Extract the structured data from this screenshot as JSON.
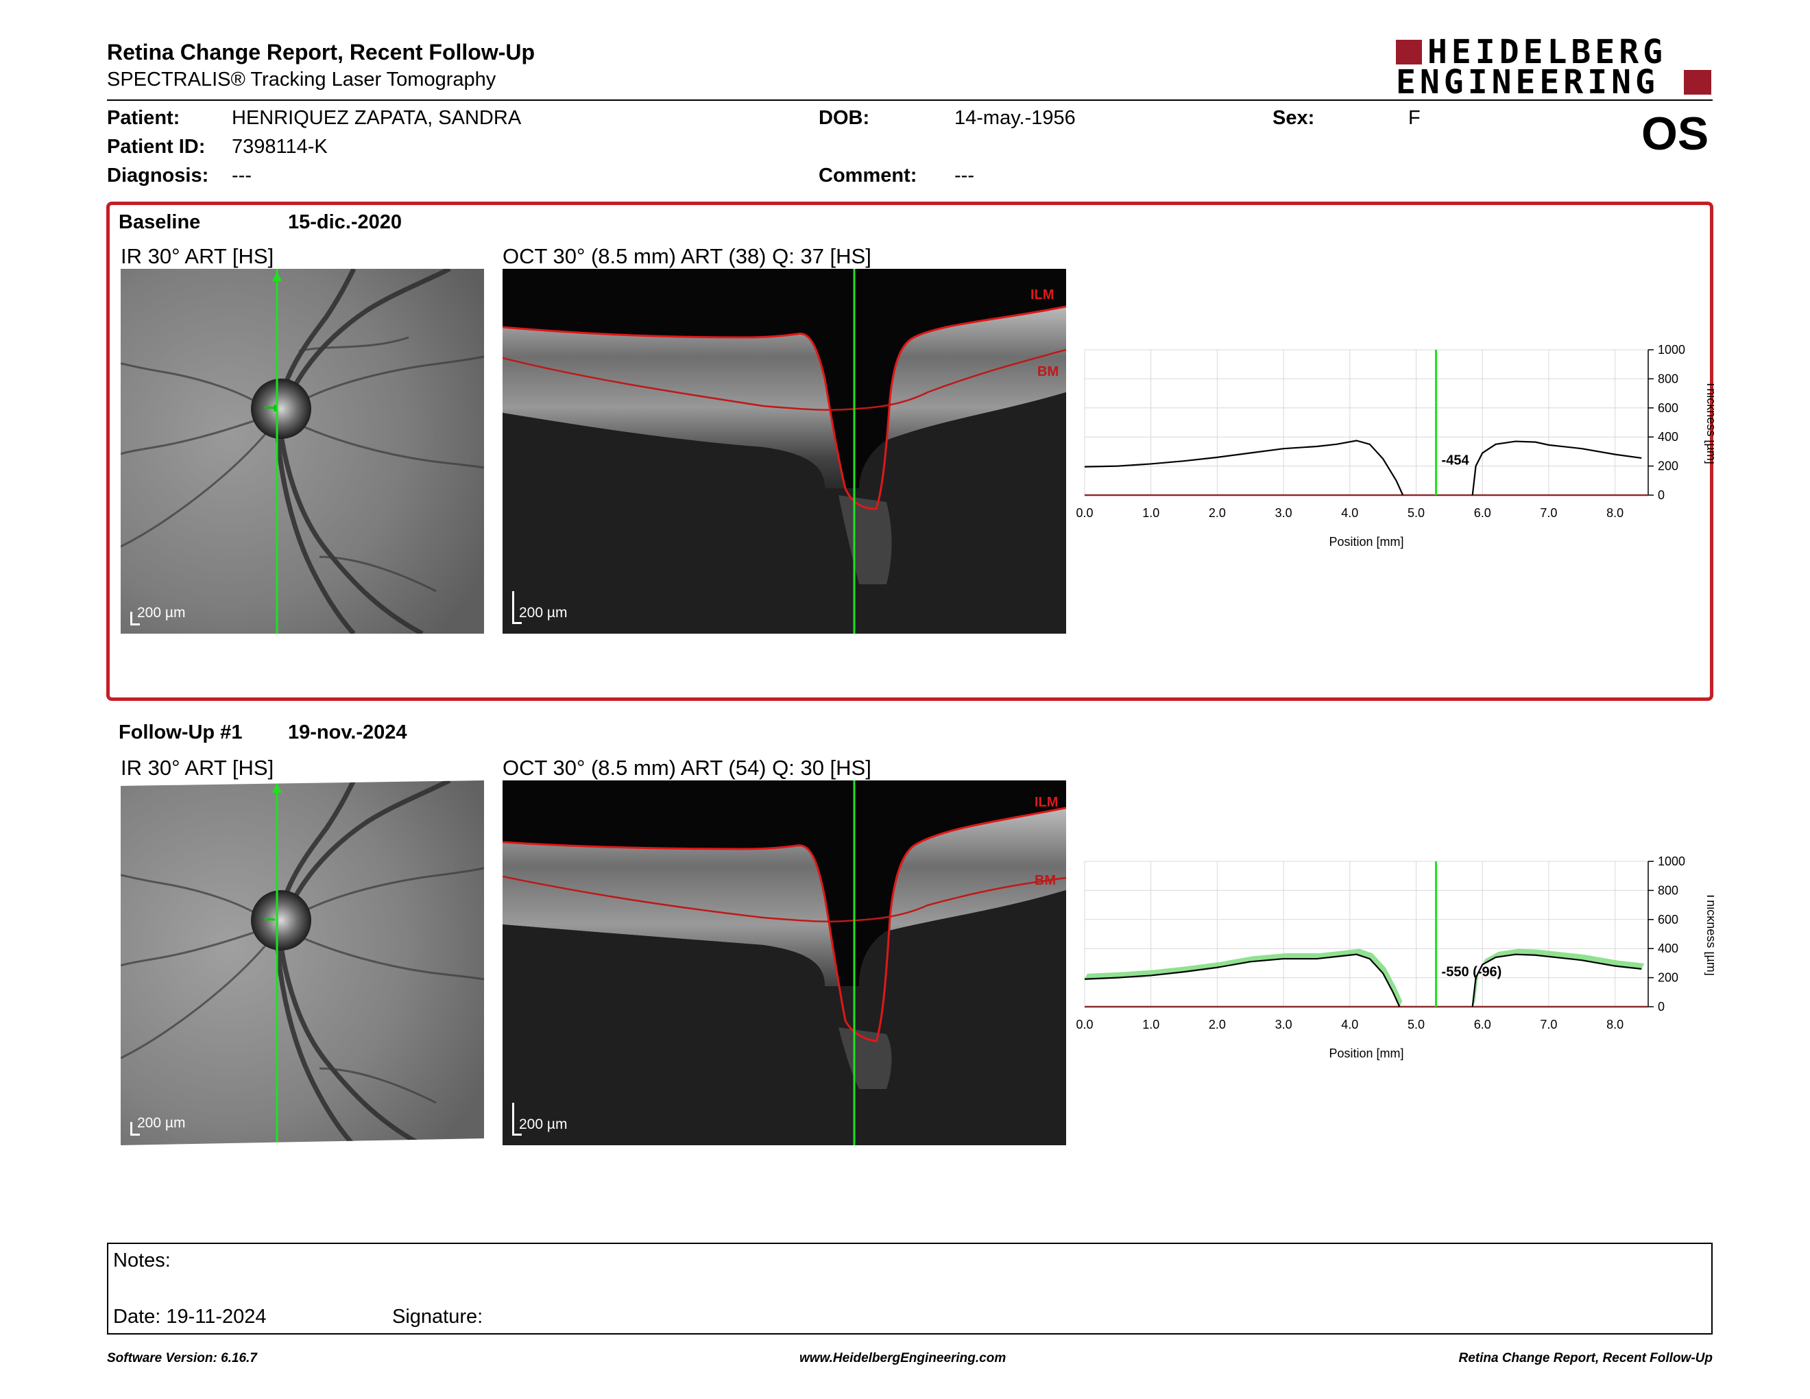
{
  "header": {
    "title": "Retina Change Report, Recent Follow-Up",
    "subtitle": "SPECTRALIS® Tracking Laser Tomography",
    "logo_line1": "HEIDELBERG",
    "logo_line2": "ENGINEERING",
    "eye": "OS"
  },
  "patient": {
    "patient_label": "Patient:",
    "patient_value": "HENRIQUEZ ZAPATA, SANDRA",
    "dob_label": "DOB:",
    "dob_value": "14-may.-1956",
    "sex_label": "Sex:",
    "sex_value": "F",
    "id_label": "Patient ID:",
    "id_value": "7398114-K",
    "diagnosis_label": "Diagnosis:",
    "diagnosis_value": "---",
    "comment_label": "Comment:",
    "comment_value": "---"
  },
  "baseline": {
    "label": "Baseline",
    "date": "15-dic.-2020",
    "ir_caption": "IR 30° ART [HS]",
    "oct_caption": "OCT 30° (8.5 mm) ART (38) Q: 37 [HS]",
    "scale_ir": "200 µm",
    "scale_oct": "200 µm",
    "ilm_label": "ILM",
    "bm_label": "BM",
    "thickness_label": "-454"
  },
  "followup": {
    "label": "Follow-Up #1",
    "date": "19-nov.-2024",
    "ir_caption": "IR 30° ART [HS]",
    "oct_caption": "OCT 30° (8.5 mm) ART (54) Q: 30 [HS]",
    "scale_ir": "200 µm",
    "scale_oct": "200 µm",
    "ilm_label": "ILM",
    "bm_label": "BM",
    "thickness_label": "-550 (-96)"
  },
  "chart_data": [
    {
      "type": "line",
      "title": "",
      "xlabel": "Position [mm]",
      "ylabel": "Thickness [µm]",
      "xlim": [
        0,
        8.5
      ],
      "ylim": [
        0,
        1000
      ],
      "x_ticks": [
        "0.0",
        "1.0",
        "2.0",
        "3.0",
        "4.0",
        "5.0",
        "6.0",
        "7.0",
        "8.0"
      ],
      "y_ticks": [
        "0",
        "200",
        "400",
        "600",
        "800",
        "1000"
      ],
      "grid": true,
      "marker_position": 5.3,
      "series": [
        {
          "x": [
            0,
            0.5,
            1.0,
            1.5,
            2.0,
            2.5,
            3.0,
            3.5,
            3.8,
            4.1,
            4.3,
            4.5,
            4.7,
            4.8
          ],
          "y": [
            195,
            200,
            215,
            235,
            260,
            290,
            320,
            335,
            350,
            375,
            350,
            250,
            100,
            0
          ]
        },
        {
          "x": [
            5.85,
            5.9,
            6.0,
            6.2,
            6.5,
            6.8,
            7.0,
            7.5,
            8.0,
            8.4
          ],
          "y": [
            0,
            200,
            290,
            350,
            370,
            365,
            345,
            320,
            280,
            255
          ]
        }
      ]
    },
    {
      "type": "line",
      "title": "",
      "xlabel": "Position [mm]",
      "ylabel": "Thickness [µm]",
      "xlim": [
        0,
        8.5
      ],
      "ylim": [
        0,
        1000
      ],
      "x_ticks": [
        "0.0",
        "1.0",
        "2.0",
        "3.0",
        "4.0",
        "5.0",
        "6.0",
        "7.0",
        "8.0"
      ],
      "y_ticks": [
        "0",
        "200",
        "400",
        "600",
        "800",
        "1000"
      ],
      "grid": true,
      "marker_position": 5.3,
      "series": [
        {
          "x": [
            0,
            0.5,
            1.0,
            1.5,
            2.0,
            2.5,
            3.0,
            3.5,
            3.8,
            4.1,
            4.3,
            4.5,
            4.65,
            4.75
          ],
          "y": [
            190,
            200,
            215,
            240,
            270,
            310,
            330,
            330,
            345,
            360,
            330,
            230,
            100,
            0
          ]
        },
        {
          "x": [
            5.85,
            5.9,
            6.0,
            6.2,
            6.5,
            6.8,
            7.0,
            7.5,
            8.0,
            8.4
          ],
          "y": [
            0,
            200,
            290,
            340,
            360,
            355,
            345,
            320,
            280,
            260
          ]
        }
      ]
    }
  ],
  "notes": {
    "notes_label": "Notes:",
    "date_label": "Date: 19-11-2024",
    "signature_label": "Signature:"
  },
  "footer": {
    "left": "Software Version: 6.16.7",
    "center": "www.HeidelbergEngineering.com",
    "right": "Retina Change Report, Recent Follow-Up"
  }
}
